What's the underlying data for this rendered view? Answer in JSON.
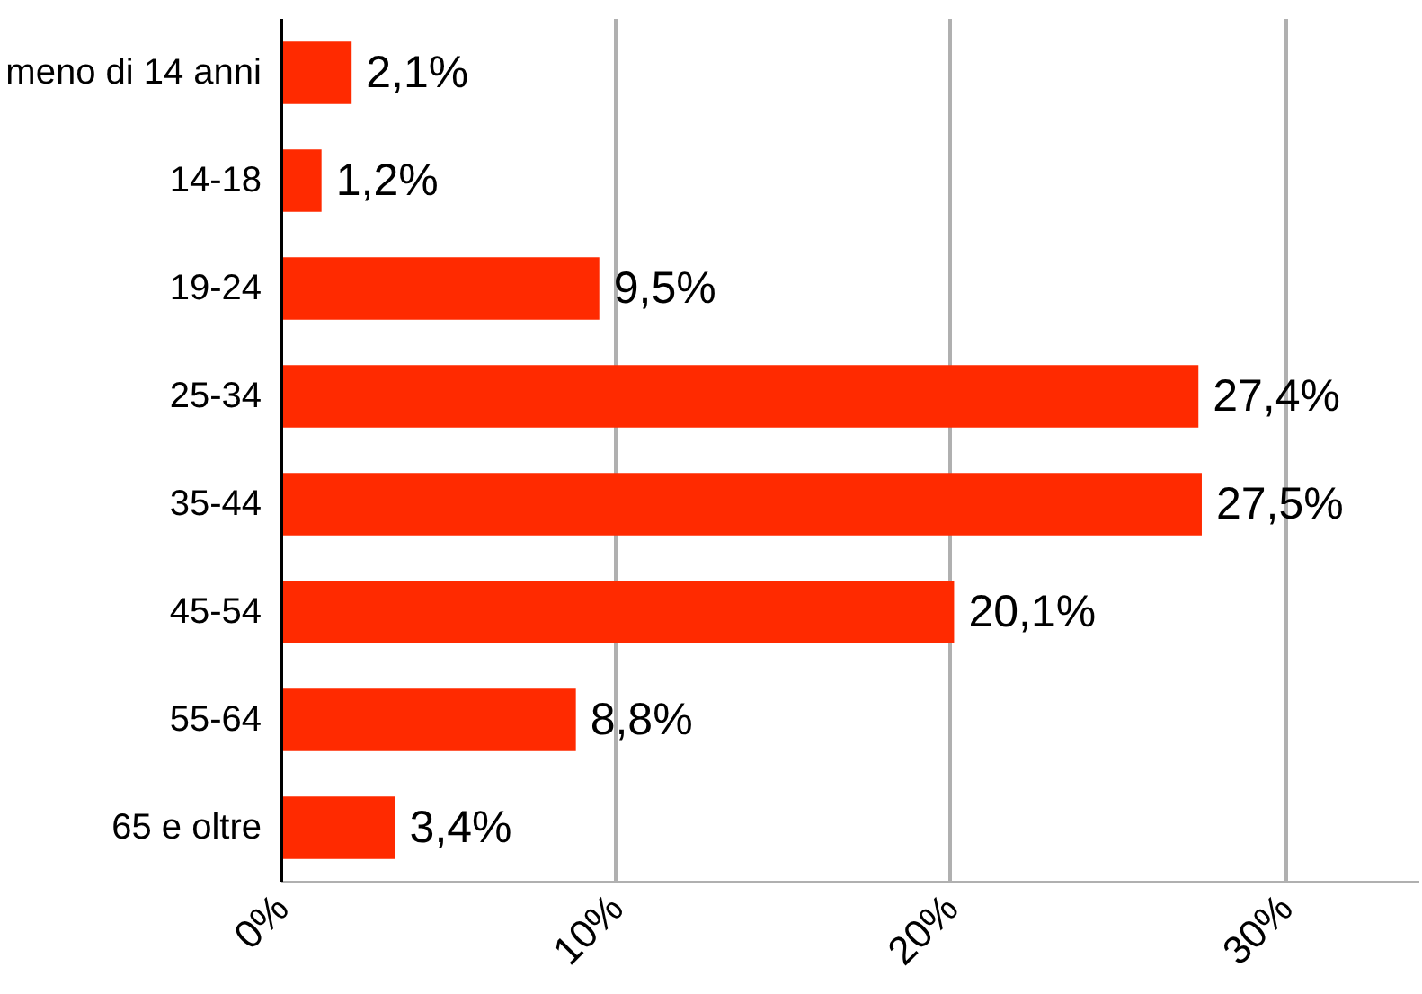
{
  "chart_data": {
    "type": "bar",
    "orientation": "horizontal",
    "categories": [
      "meno di 14 anni",
      "14-18",
      "19-24",
      "25-34",
      "35-44",
      "45-54",
      "55-64",
      "65 e oltre"
    ],
    "values": [
      2.1,
      1.2,
      9.5,
      27.4,
      27.5,
      20.1,
      8.8,
      3.4
    ],
    "value_labels": [
      "2,1%",
      "1,2%",
      "9,5%",
      "27,4%",
      "27,5%",
      "20,1%",
      "8,8%",
      "3,4%"
    ],
    "color": "#ff2a00",
    "xlim": [
      0,
      34
    ],
    "xticks": [
      {
        "value": 0,
        "label": "0%"
      },
      {
        "value": 10,
        "label": "10%"
      },
      {
        "value": 20,
        "label": "20%"
      },
      {
        "value": 30,
        "label": "30%"
      }
    ],
    "grid": "x"
  }
}
